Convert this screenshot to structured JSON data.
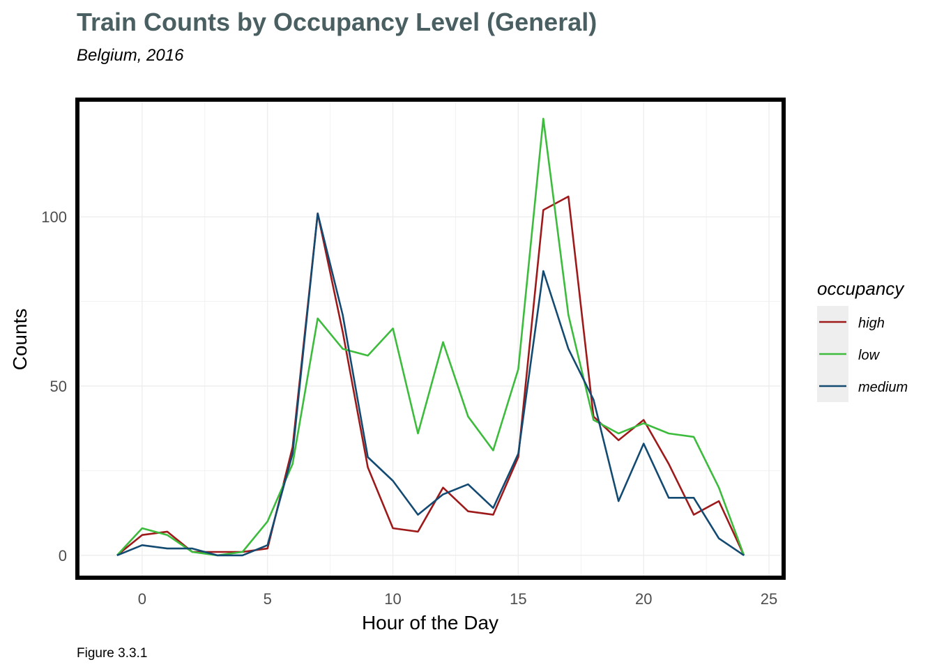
{
  "chart_data": {
    "type": "line",
    "title": "Train Counts by Occupancy Level (General)",
    "subtitle": "Belgium, 2016",
    "xlabel": "Hour of the Day",
    "ylabel": "Counts",
    "caption": "Figure 3.3.1",
    "xlim": [
      -2.5,
      25.5
    ],
    "ylim": [
      -6,
      134
    ],
    "x_ticks": [
      0,
      5,
      10,
      15,
      20,
      25
    ],
    "y_ticks": [
      0,
      50,
      100
    ],
    "grid": true,
    "legend": {
      "title": "occupancy",
      "position": "right"
    },
    "x": [
      -1,
      0,
      1,
      2,
      3,
      4,
      5,
      6,
      7,
      8,
      9,
      10,
      11,
      12,
      13,
      14,
      15,
      16,
      17,
      18,
      19,
      20,
      21,
      22,
      23,
      24
    ],
    "series": [
      {
        "name": "high",
        "color": "#9e1a1a",
        "values": [
          0,
          6,
          7,
          1,
          1,
          1,
          2,
          32,
          101,
          66,
          26,
          8,
          7,
          20,
          13,
          12,
          29,
          102,
          106,
          41,
          34,
          40,
          27,
          12,
          16,
          0
        ]
      },
      {
        "name": "low",
        "color": "#3cbb3c",
        "values": [
          0,
          8,
          6,
          1,
          0,
          1,
          10,
          27,
          70,
          61,
          59,
          67,
          36,
          63,
          41,
          31,
          55,
          129,
          71,
          40,
          36,
          39,
          36,
          35,
          20,
          0
        ]
      },
      {
        "name": "medium",
        "color": "#134a72",
        "values": [
          0,
          3,
          2,
          2,
          0,
          0,
          3,
          30,
          101,
          71,
          29,
          22,
          12,
          18,
          21,
          14,
          30,
          84,
          61,
          46,
          16,
          33,
          17,
          17,
          5,
          0
        ]
      }
    ]
  },
  "colors": {
    "title": "#4a5f61",
    "grid": "#ebebeb",
    "panel_border": "#000000",
    "legend_key_bg": "#eeeeee"
  }
}
